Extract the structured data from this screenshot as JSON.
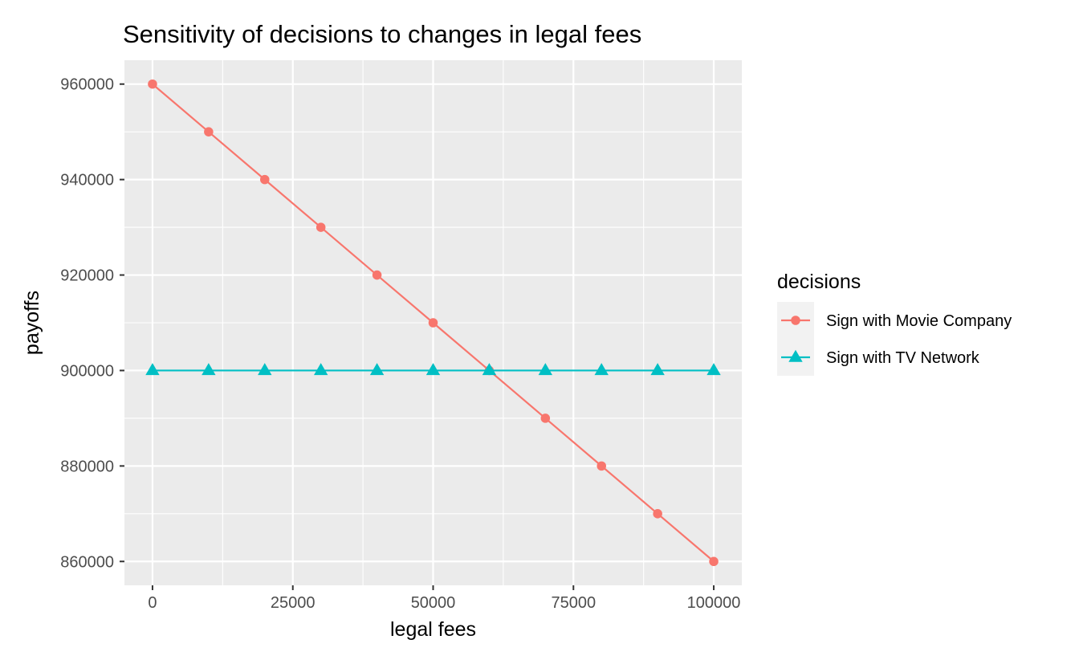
{
  "chart_data": {
    "type": "line",
    "title": "Sensitivity of decisions to changes in legal fees",
    "xlabel": "legal fees",
    "ylabel": "payoffs",
    "x": [
      0,
      10000,
      20000,
      30000,
      40000,
      50000,
      60000,
      70000,
      80000,
      90000,
      100000
    ],
    "xlim": [
      -5000,
      105000
    ],
    "ylim": [
      855000,
      965000
    ],
    "x_ticks": [
      0,
      25000,
      50000,
      75000,
      100000
    ],
    "x_tick_labels": [
      "0",
      "25000",
      "50000",
      "75000",
      "100000"
    ],
    "y_ticks": [
      860000,
      880000,
      900000,
      920000,
      940000,
      960000
    ],
    "y_tick_labels": [
      "860000",
      "880000",
      "900000",
      "920000",
      "940000",
      "960000"
    ],
    "grid": true,
    "legend_title": "decisions",
    "legend_position": "right",
    "series": [
      {
        "name": "Sign with Movie Company",
        "color": "#F8766D",
        "marker": "circle",
        "values": [
          960000,
          950000,
          940000,
          930000,
          920000,
          910000,
          900000,
          890000,
          880000,
          870000,
          860000
        ]
      },
      {
        "name": "Sign with TV Network",
        "color": "#00BFC4",
        "marker": "triangle",
        "values": [
          900000,
          900000,
          900000,
          900000,
          900000,
          900000,
          900000,
          900000,
          900000,
          900000,
          900000
        ]
      }
    ]
  }
}
